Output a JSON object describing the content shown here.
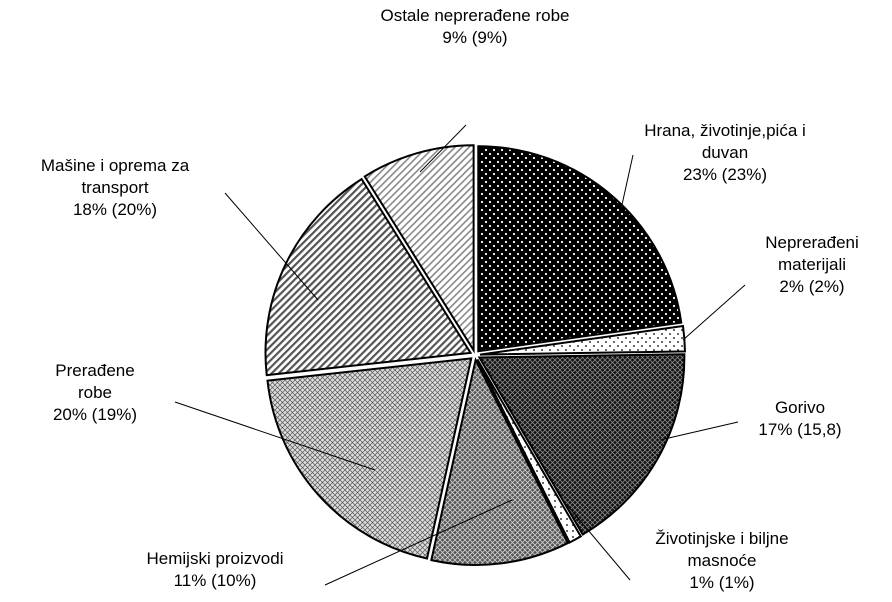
{
  "chart_data": {
    "type": "pie",
    "categories": [
      "Hrana, životinje,pića i duvan",
      "Neprerađeni materijali",
      "Gorivo",
      "Životinjske i biljne masnoće",
      "Hemijski proizvodi",
      "Prerađene robe",
      "Mašine i oprema za transport",
      "Ostale neprerađene robe"
    ],
    "values": [
      23,
      2,
      17,
      1,
      11,
      20,
      18,
      9
    ],
    "value_labels": [
      "23% (23%)",
      "2% (2%)",
      "17% (15,8)",
      "1% (1%)",
      "11% (10%)",
      "20% (19%)",
      "18% (20%)",
      "9% (9%)"
    ]
  }
}
